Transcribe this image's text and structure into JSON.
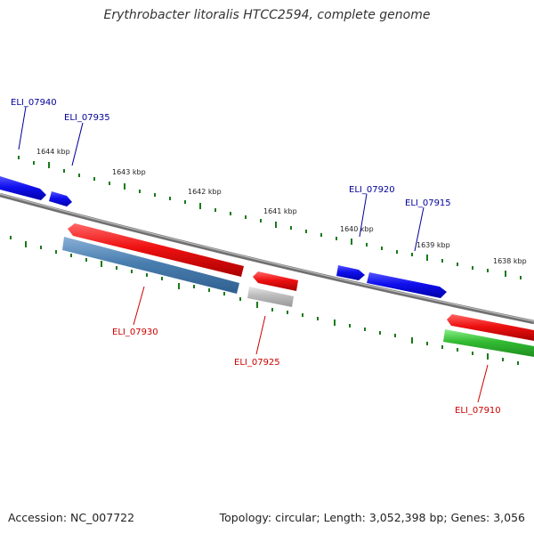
{
  "title": "Erythrobacter litoralis HTCC2594, complete genome",
  "footer": {
    "accession": "Accession: NC_007722",
    "info": "Topology: circular; Length: 3,052,398 bp; Genes: 3,056"
  },
  "colors": {
    "forward_gene": "#1010ee",
    "reverse_gene": "#ee1111",
    "steelblue_gene": "#4a7fb0",
    "gray_gene": "#bbbbbb",
    "green_gene": "#33bb33",
    "backbone": "#808080",
    "tick": "#1a7a1a",
    "label_forward": "#000099",
    "label_reverse": "#cc0000"
  },
  "kbp_labels": [
    "1644 kbp",
    "1643 kbp",
    "1642 kbp",
    "1641 kbp",
    "1640 kbp",
    "1639 kbp",
    "1638 kbp"
  ],
  "gene_labels": {
    "forward": [
      "ELI_07940",
      "ELI_07935",
      "ELI_07920",
      "ELI_07915"
    ],
    "reverse": [
      "ELI_07930",
      "ELI_07925",
      "ELI_07910"
    ]
  }
}
